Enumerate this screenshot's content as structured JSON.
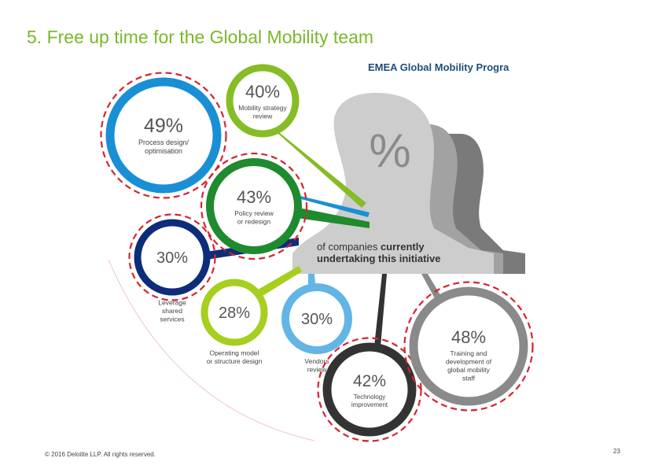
{
  "title": "5. Free up time for the Global Mobility team",
  "graphic_heading": "EMEA Global Mobility Progra",
  "center_label": {
    "symbol": "%",
    "line1_normal": "of companies ",
    "line1_bold": "currently",
    "line2_bold": "undertaking this initiative"
  },
  "initiatives": [
    {
      "value": "40%",
      "label_lines": [
        "Mobility strategy",
        "review"
      ],
      "highlighted": false,
      "color": "#86bc25"
    },
    {
      "value": "49%",
      "label_lines": [
        "Process design/",
        "optimisation"
      ],
      "highlighted": true,
      "color": "#1a8fd6"
    },
    {
      "value": "43%",
      "label_lines": [
        "Policy review",
        "or redesign"
      ],
      "highlighted": true,
      "color": "#1f8a2e"
    },
    {
      "value": "30%",
      "label_lines": [
        "Leverage",
        "shared",
        "services"
      ],
      "highlighted": true,
      "color": "#0d2d7a"
    },
    {
      "value": "28%",
      "label_lines": [
        "Operating model",
        "or structure design"
      ],
      "highlighted": false,
      "color": "#a6cf1f"
    },
    {
      "value": "30%",
      "label_lines": [
        "Vendors",
        "review"
      ],
      "highlighted": false,
      "color": "#62b5e5"
    },
    {
      "value": "42%",
      "label_lines": [
        "Technology",
        "improvement"
      ],
      "highlighted": true,
      "color": "#333333"
    },
    {
      "value": "48%",
      "label_lines": [
        "Training and",
        "development of",
        "global mobility",
        "staff"
      ],
      "highlighted": true,
      "color": "#8a8a8a"
    }
  ],
  "footer": "© 2016 Deloitte LLP. All rights reserved.",
  "page_number": "23"
}
